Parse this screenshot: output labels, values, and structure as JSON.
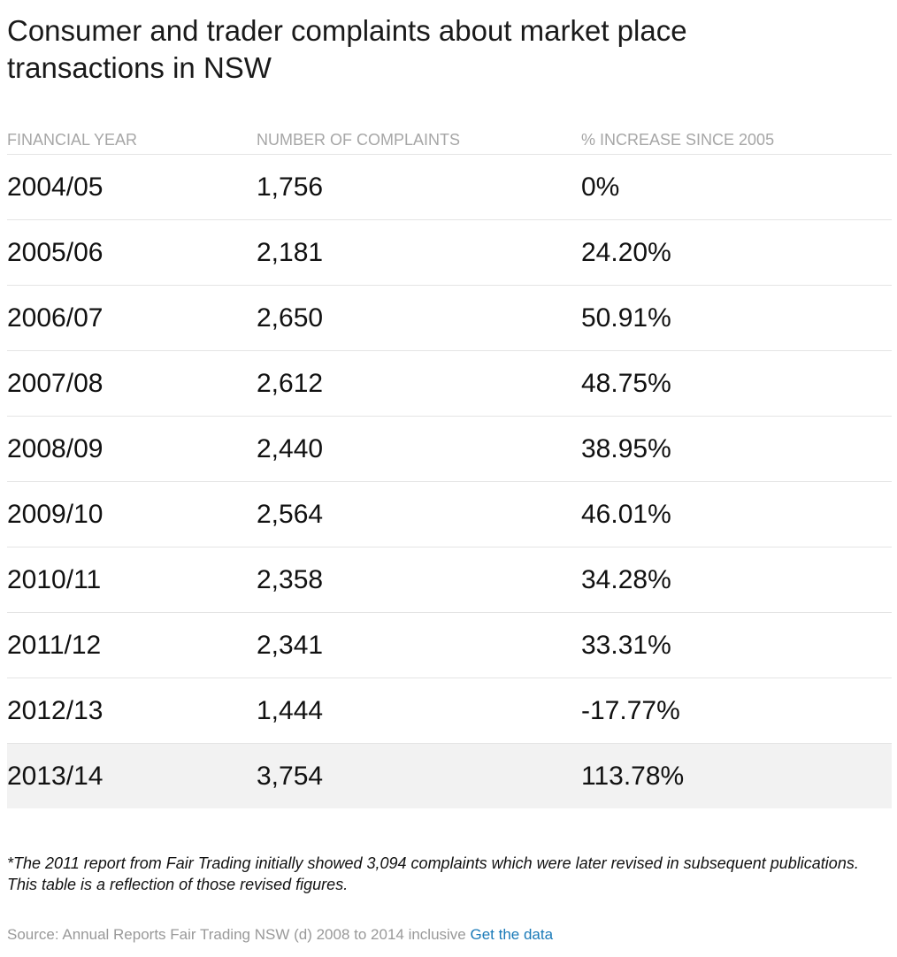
{
  "header": {
    "title": "Consumer and trader complaints about market place transactions in NSW"
  },
  "table": {
    "headers": [
      "FINANCIAL YEAR",
      "NUMBER OF COMPLAINTS",
      "% INCREASE SINCE 2005"
    ],
    "rows": [
      [
        "2004/05",
        "1,756",
        "0%"
      ],
      [
        "2005/06",
        "2,181",
        "24.20%"
      ],
      [
        "2006/07",
        "2,650",
        "50.91%"
      ],
      [
        "2007/08",
        "2,612",
        "48.75%"
      ],
      [
        "2008/09",
        "2,440",
        "38.95%"
      ],
      [
        "2009/10",
        "2,564",
        "46.01%"
      ],
      [
        "2010/11",
        "2,358",
        "34.28%"
      ],
      [
        "2011/12",
        "2,341",
        "33.31%"
      ],
      [
        "2012/13",
        "1,444",
        "-17.77%"
      ],
      [
        "2013/14",
        "3,754",
        "113.78%"
      ]
    ]
  },
  "footnote": "*The 2011 report from Fair Trading initially showed 3,094 complaints which were later revised in subsequent publications. This table is a reflection of those revised figures.",
  "source": {
    "text": "Source: Annual Reports Fair Trading NSW (d) 2008 to 2014 inclusive",
    "link": "Get the data"
  }
}
